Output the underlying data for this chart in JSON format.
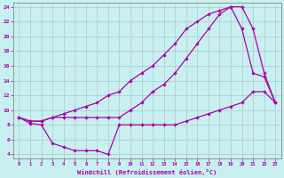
{
  "xlabel": "Windchill (Refroidissement éolien,°C)",
  "bg_color": "#c8f0f0",
  "line_color": "#aa00aa",
  "grid_color": "#b0d0d0",
  "xlim": [
    -0.5,
    23.5
  ],
  "ylim": [
    3.5,
    24.5
  ],
  "xticks": [
    0,
    1,
    2,
    3,
    4,
    5,
    6,
    7,
    8,
    9,
    10,
    11,
    12,
    13,
    14,
    15,
    16,
    17,
    18,
    19,
    20,
    21,
    22,
    23
  ],
  "yticks": [
    4,
    6,
    8,
    10,
    12,
    14,
    16,
    18,
    20,
    22,
    24
  ],
  "line1_x": [
    0,
    1,
    2,
    3,
    4,
    5,
    6,
    7,
    8,
    9,
    10,
    11,
    12,
    13,
    14,
    15,
    16,
    17,
    18,
    19,
    20,
    21,
    22,
    23
  ],
  "line1_y": [
    9,
    8.5,
    8.5,
    9,
    9,
    9,
    9,
    9,
    9,
    9,
    10,
    11,
    12.5,
    13.5,
    15,
    17,
    19,
    21,
    23,
    24,
    24,
    21,
    15,
    11
  ],
  "line2_x": [
    0,
    1,
    2,
    3,
    4,
    5,
    6,
    7,
    8,
    9,
    10,
    11,
    12,
    13,
    14,
    15,
    16,
    17,
    18,
    19,
    20,
    21,
    22,
    23
  ],
  "line2_y": [
    9,
    8.5,
    8.5,
    9,
    9.5,
    10,
    10.5,
    11,
    12,
    12.5,
    14,
    15,
    16,
    17.5,
    19,
    21,
    22,
    23,
    23.5,
    24,
    21,
    15,
    14.5,
    11
  ],
  "line3_x": [
    0,
    1,
    2,
    3,
    4,
    5,
    6,
    7,
    8,
    9,
    10,
    11,
    12,
    13,
    14,
    15,
    16,
    17,
    18,
    19,
    20,
    21,
    22,
    23
  ],
  "line3_y": [
    9,
    8.2,
    8,
    5.5,
    5,
    4.5,
    4.5,
    4.5,
    4,
    8,
    8,
    8,
    8,
    8,
    8,
    8.5,
    9,
    9.5,
    10,
    10.5,
    11,
    12.5,
    12.5,
    11
  ]
}
